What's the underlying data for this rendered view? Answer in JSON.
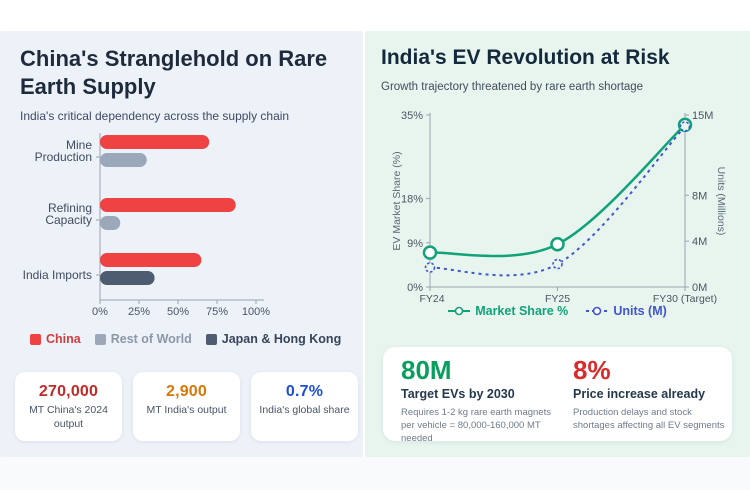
{
  "left_panel": {
    "title": "China's Stranglehold on Rare Earth Supply",
    "subtitle": "India's critical dependency across the supply chain",
    "stats": [
      {
        "value": "270,000",
        "label": "MT China's 2024 output",
        "color": "#c02a28"
      },
      {
        "value": "2,900",
        "label": "MT India's output",
        "color": "#d97706"
      },
      {
        "value": "0.7%",
        "label": "India's global share",
        "color": "#1d4ed8"
      }
    ]
  },
  "right_panel": {
    "title": "India's EV Revolution at Risk",
    "subtitle": "Growth trajectory threatened by rare earth shortage",
    "stats": [
      {
        "value": "80M",
        "label": "Target EVs by 2030",
        "desc": "Requires 1-2 kg rare earth magnets per vehicle = 80,000-160,000 MT needed",
        "color": "#0a9e5f"
      },
      {
        "value": "8%",
        "label": "Price increase already",
        "desc": "Production delays and stock shortages affecting all EV segments",
        "color": "#d92b2b"
      }
    ]
  },
  "chart_data": [
    {
      "type": "bar",
      "orientation": "horizontal",
      "title": "China's Stranglehold on Rare Earth Supply",
      "categories": [
        "Mine Production",
        "Refining Capacity",
        "India Imports"
      ],
      "category_label_lines": [
        [
          "Mine",
          "Production"
        ],
        [
          "Refining",
          "Capacity"
        ],
        [
          "India Imports"
        ]
      ],
      "rows": [
        {
          "category": "Mine Production",
          "bars": [
            {
              "series": "China",
              "value": 70
            },
            {
              "series": "Rest of World",
              "value": 30
            }
          ]
        },
        {
          "category": "Refining Capacity",
          "bars": [
            {
              "series": "China",
              "value": 87
            },
            {
              "series": "Rest of World",
              "value": 13
            }
          ]
        },
        {
          "category": "India Imports",
          "bars": [
            {
              "series": "China",
              "value": 65
            },
            {
              "series": "Japan & Hong Kong",
              "value": 35
            }
          ]
        }
      ],
      "series_colors": {
        "China": "#ee4243",
        "Rest of World": "#9aa8ba",
        "Japan & Hong Kong": "#4e5c70"
      },
      "xlim": [
        0,
        100
      ],
      "xticks": [
        0,
        25,
        50,
        75,
        100
      ],
      "xtick_suffix": "%",
      "legend": [
        {
          "name": "China",
          "color": "#ee4243",
          "text_color": "#cf3f3f"
        },
        {
          "name": "Rest of World",
          "color": "#9aa8ba",
          "text_color": "#8b98a9"
        },
        {
          "name": "Japan & Hong Kong",
          "color": "#4e5c70",
          "text_color": "#37455a"
        }
      ],
      "legend_position": "bottom"
    },
    {
      "type": "line",
      "title": "India's EV Revolution at Risk",
      "x": [
        "FY24",
        "FY25",
        "FY30 (Target)"
      ],
      "series": [
        {
          "name": "Market Share %",
          "axis": "left",
          "style": "solid",
          "color": "#12a279",
          "values": [
            7,
            8.7,
            33
          ]
        },
        {
          "name": "Units (M)",
          "axis": "right",
          "style": "dashed",
          "color": "#4055cf",
          "values": [
            1.7,
            2,
            14
          ]
        }
      ],
      "left_axis": {
        "label": "EV Market Share (%)",
        "ticks": [
          0,
          9,
          18,
          35
        ],
        "max": 35,
        "suffix": "%"
      },
      "right_axis": {
        "label": "Units (Millions)",
        "ticks": [
          0,
          4,
          8,
          15
        ],
        "max": 15,
        "suffix": "M"
      },
      "grid": false,
      "legend_position": "bottom"
    }
  ]
}
